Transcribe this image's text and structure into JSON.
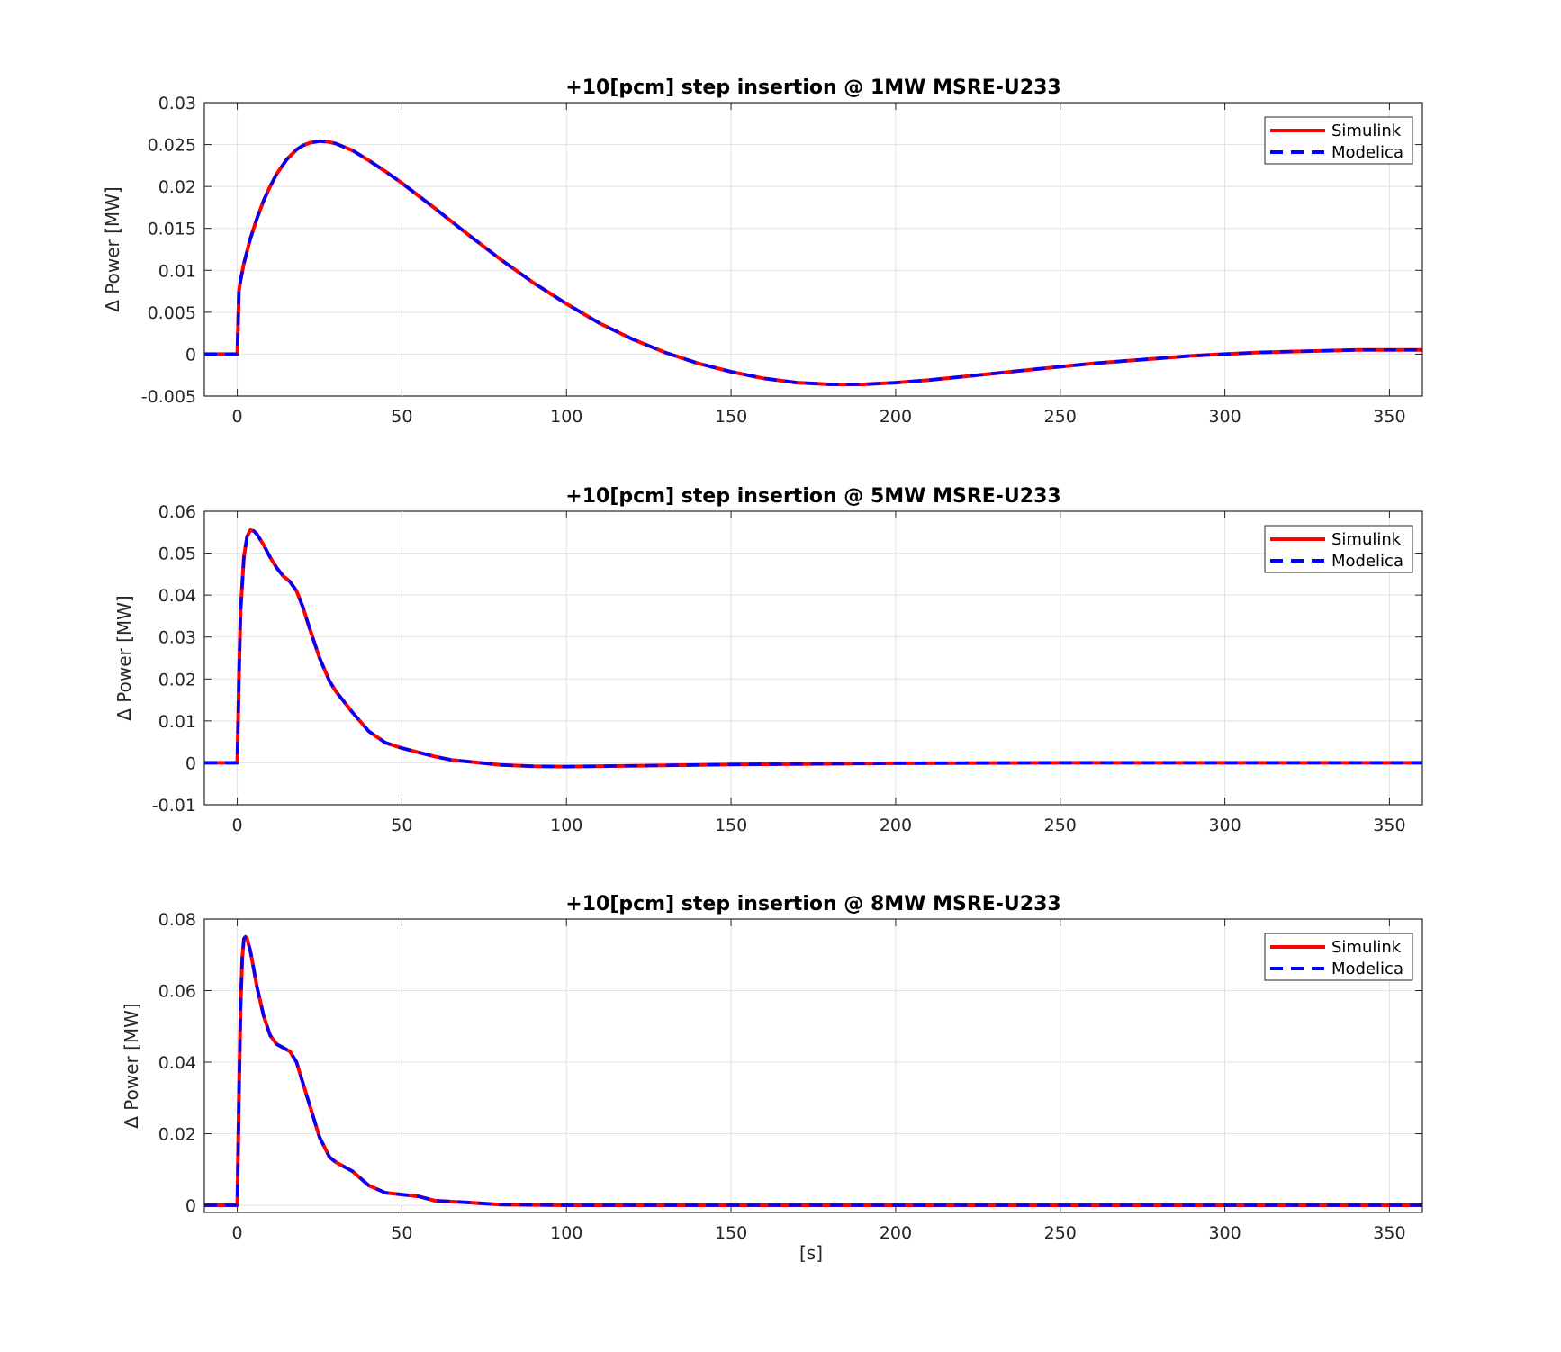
{
  "colors": {
    "simulink": "#ff0000",
    "modelica": "#0000ff",
    "grid": "#e2e2e2",
    "axes": "#262626"
  },
  "xlabel": "[s]",
  "legend": {
    "placement": "top-right",
    "entries": [
      "Simulink",
      "Modelica"
    ]
  },
  "chart_data": [
    {
      "type": "line",
      "title": "+10[pcm] step insertion @ 1MW MSRE-U233",
      "ylabel": "Δ Power [MW]",
      "xlabel": "",
      "xlim": [
        -10,
        360
      ],
      "ylim": [
        -0.005,
        0.03
      ],
      "grid": true,
      "xticks": [
        0,
        50,
        100,
        150,
        200,
        250,
        300,
        350
      ],
      "yticks": [
        -0.005,
        0,
        0.005,
        0.01,
        0.015,
        0.02,
        0.025,
        0.03
      ],
      "yticklabels": [
        "-0.005",
        "0",
        "0.005",
        "0.01",
        "0.015",
        "0.02",
        "0.025",
        "0.03"
      ],
      "x": [
        -10,
        -1,
        0,
        0.5,
        1,
        2,
        4,
        6,
        8,
        10,
        12,
        15,
        18,
        20,
        22,
        25,
        28,
        30,
        35,
        40,
        45,
        50,
        60,
        70,
        80,
        90,
        100,
        110,
        120,
        130,
        140,
        150,
        160,
        170,
        180,
        190,
        200,
        210,
        220,
        230,
        240,
        250,
        260,
        270,
        280,
        290,
        300,
        310,
        320,
        330,
        340,
        350,
        360
      ],
      "series": [
        {
          "name": "Simulink",
          "values": [
            0,
            0,
            0,
            0.0075,
            0.0088,
            0.0108,
            0.0138,
            0.0162,
            0.0183,
            0.02,
            0.0215,
            0.0232,
            0.0244,
            0.0249,
            0.0252,
            0.0254,
            0.0253,
            0.0251,
            0.0243,
            0.0231,
            0.0218,
            0.0204,
            0.0174,
            0.0143,
            0.0113,
            0.0085,
            0.006,
            0.0037,
            0.0018,
            0.0002,
            -0.0011,
            -0.0021,
            -0.0029,
            -0.0034,
            -0.0036,
            -0.0036,
            -0.0034,
            -0.0031,
            -0.0027,
            -0.0023,
            -0.0019,
            -0.0015,
            -0.0011,
            -0.0008,
            -0.0005,
            -0.0002,
            0.0,
            0.0002,
            0.0003,
            0.0004,
            0.0005,
            0.0005,
            0.0005
          ]
        },
        {
          "name": "Modelica",
          "values": [
            0,
            0,
            0,
            0.0075,
            0.0088,
            0.0108,
            0.0138,
            0.0162,
            0.0183,
            0.02,
            0.0215,
            0.0232,
            0.0244,
            0.0249,
            0.0252,
            0.0254,
            0.0253,
            0.0251,
            0.0243,
            0.0231,
            0.0218,
            0.0204,
            0.0174,
            0.0143,
            0.0113,
            0.0085,
            0.006,
            0.0037,
            0.0018,
            0.0002,
            -0.0011,
            -0.0021,
            -0.0029,
            -0.0034,
            -0.0036,
            -0.0036,
            -0.0034,
            -0.0031,
            -0.0027,
            -0.0023,
            -0.0019,
            -0.0015,
            -0.0011,
            -0.0008,
            -0.0005,
            -0.0002,
            0.0,
            0.0002,
            0.0003,
            0.0004,
            0.0005,
            0.0005,
            0.0005
          ]
        }
      ]
    },
    {
      "type": "line",
      "title": "+10[pcm] step insertion @ 5MW MSRE-U233",
      "ylabel": "Δ Power [MW]",
      "xlabel": "",
      "xlim": [
        -10,
        360
      ],
      "ylim": [
        -0.01,
        0.06
      ],
      "grid": true,
      "xticks": [
        0,
        50,
        100,
        150,
        200,
        250,
        300,
        350
      ],
      "yticks": [
        -0.01,
        0,
        0.01,
        0.02,
        0.03,
        0.04,
        0.05,
        0.06
      ],
      "yticklabels": [
        "-0.01",
        "0",
        "0.01",
        "0.02",
        "0.03",
        "0.04",
        "0.05",
        "0.06"
      ],
      "x": [
        -10,
        -0.5,
        0,
        0.5,
        1,
        2,
        3,
        4,
        5,
        6,
        8,
        10,
        12,
        14,
        16,
        18,
        20,
        22,
        25,
        28,
        30,
        35,
        40,
        45,
        50,
        55,
        60,
        65,
        70,
        80,
        90,
        100,
        120,
        150,
        200,
        250,
        300,
        360
      ],
      "series": [
        {
          "name": "Simulink",
          "values": [
            0,
            0,
            0,
            0.02,
            0.036,
            0.049,
            0.054,
            0.0555,
            0.0553,
            0.0545,
            0.052,
            0.049,
            0.0465,
            0.0445,
            0.0432,
            0.041,
            0.037,
            0.032,
            0.025,
            0.0195,
            0.017,
            0.012,
            0.0075,
            0.0048,
            0.0035,
            0.0025,
            0.0015,
            0.0007,
            0.0003,
            -0.0005,
            -0.0008,
            -0.0009,
            -0.0007,
            -0.0004,
            -0.0001,
            0,
            0,
            0
          ]
        },
        {
          "name": "Modelica",
          "values": [
            0,
            0,
            0,
            0.02,
            0.036,
            0.049,
            0.054,
            0.0555,
            0.0553,
            0.0545,
            0.052,
            0.049,
            0.0465,
            0.0445,
            0.0432,
            0.041,
            0.037,
            0.032,
            0.025,
            0.0195,
            0.017,
            0.012,
            0.0075,
            0.0048,
            0.0035,
            0.0025,
            0.0015,
            0.0007,
            0.0003,
            -0.0005,
            -0.0008,
            -0.0009,
            -0.0007,
            -0.0004,
            -0.0001,
            0,
            0,
            0
          ]
        }
      ]
    },
    {
      "type": "line",
      "title": "+10[pcm] step insertion @ 8MW MSRE-U233",
      "ylabel": "Δ Power [MW]",
      "xlabel": "[s]",
      "xlim": [
        -10,
        360
      ],
      "ylim": [
        -0.002,
        0.08
      ],
      "grid": true,
      "xticks": [
        0,
        50,
        100,
        150,
        200,
        250,
        300,
        350
      ],
      "yticks": [
        0,
        0.02,
        0.04,
        0.06,
        0.08
      ],
      "yticklabels": [
        "0",
        "0.02",
        "0.04",
        "0.06",
        "0.08"
      ],
      "x": [
        -10,
        -0.5,
        0,
        0.5,
        1,
        1.5,
        2,
        2.5,
        3,
        4,
        5,
        6,
        8,
        10,
        12,
        14,
        16,
        18,
        20,
        22,
        25,
        28,
        30,
        35,
        40,
        45,
        50,
        55,
        60,
        70,
        80,
        100,
        150,
        200,
        250,
        300,
        360
      ],
      "series": [
        {
          "name": "Simulink",
          "values": [
            0,
            0,
            0,
            0.03,
            0.055,
            0.069,
            0.0745,
            0.075,
            0.0745,
            0.071,
            0.066,
            0.061,
            0.053,
            0.0475,
            0.045,
            0.044,
            0.043,
            0.04,
            0.034,
            0.028,
            0.019,
            0.0135,
            0.012,
            0.0095,
            0.0055,
            0.0035,
            0.003,
            0.0025,
            0.0013,
            0.0008,
            0.0002,
            0,
            0,
            0,
            0,
            0,
            0
          ]
        },
        {
          "name": "Modelica",
          "values": [
            0,
            0,
            0,
            0.03,
            0.055,
            0.069,
            0.0745,
            0.075,
            0.0745,
            0.071,
            0.066,
            0.061,
            0.053,
            0.0475,
            0.045,
            0.044,
            0.043,
            0.04,
            0.034,
            0.028,
            0.019,
            0.0135,
            0.012,
            0.0095,
            0.0055,
            0.0035,
            0.003,
            0.0025,
            0.0013,
            0.0008,
            0.0002,
            0,
            0,
            0,
            0,
            0,
            0
          ]
        }
      ]
    }
  ]
}
